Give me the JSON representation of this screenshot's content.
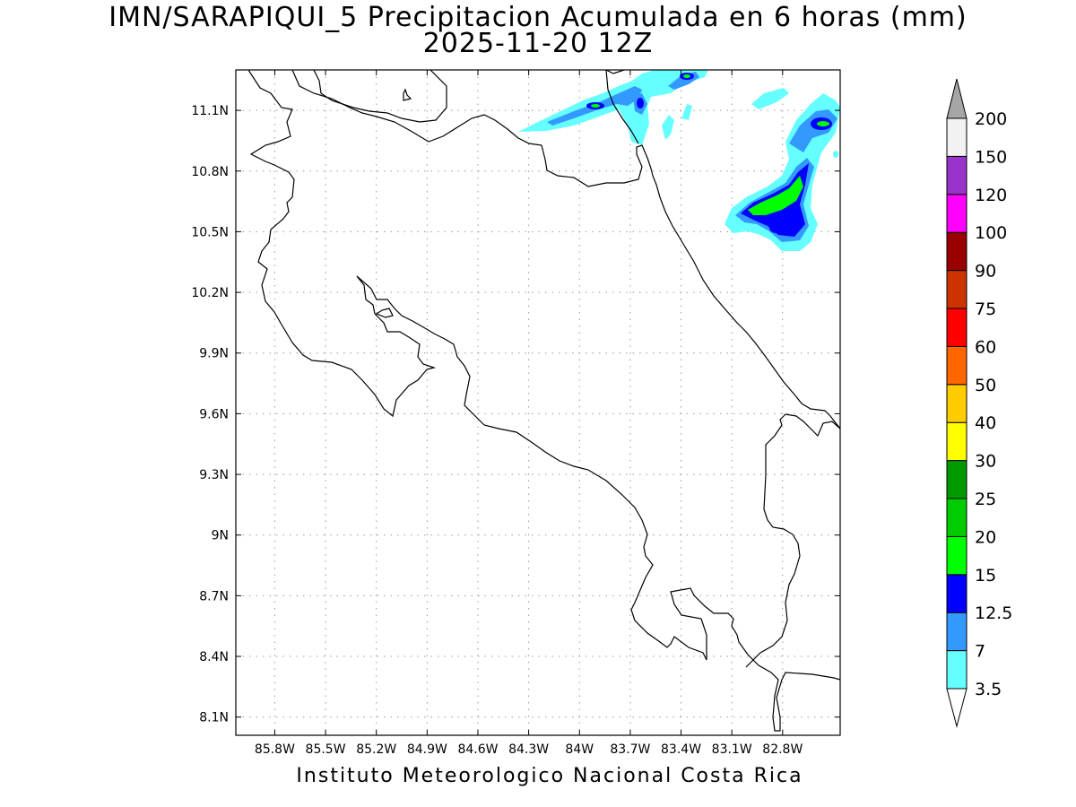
{
  "title": "IMN/SARAPIQUI_5 Precipitacion Acumulada en 6 horas (mm)",
  "subtitle": "2025-11-20 12Z",
  "footer": "Instituto Meteorologico Nacional Costa Rica",
  "map": {
    "lon_range": [
      -86.03,
      -82.46
    ],
    "lat_range": [
      8.01,
      11.3
    ],
    "lon_ticks": [
      "85.8W",
      "85.5W",
      "85.2W",
      "84.9W",
      "84.6W",
      "84.3W",
      "84W",
      "83.7W",
      "83.4W",
      "83.1W",
      "82.8W"
    ],
    "lon_values": [
      -85.8,
      -85.5,
      -85.2,
      -84.9,
      -84.6,
      -84.3,
      -84.0,
      -83.7,
      -83.4,
      -83.1,
      -82.8
    ],
    "lat_ticks": [
      "8.1N",
      "8.4N",
      "8.7N",
      "9N",
      "9.3N",
      "9.6N",
      "9.9N",
      "10.2N",
      "10.5N",
      "10.8N",
      "11.1N"
    ],
    "lat_values": [
      8.1,
      8.4,
      8.7,
      9.0,
      9.3,
      9.6,
      9.9,
      10.2,
      10.5,
      10.8,
      11.1
    ],
    "grid": "dotted"
  },
  "colorbar": {
    "labels": [
      "3.5",
      "7",
      "12.5",
      "15",
      "20",
      "25",
      "30",
      "40",
      "50",
      "60",
      "75",
      "90",
      "100",
      "120",
      "150",
      "200"
    ],
    "colors": [
      "#66ffff",
      "#3399ff",
      "#0000ff",
      "#00ff00",
      "#00cc00",
      "#009900",
      "#ffff00",
      "#ffcc00",
      "#ff6600",
      "#ff0000",
      "#cc3300",
      "#990000",
      "#ff00ff",
      "#9933cc",
      "#f2f2f2"
    ],
    "upper_arrow_color": "#a6a6a6",
    "lower_arrow_color": "#ffffff"
  }
}
